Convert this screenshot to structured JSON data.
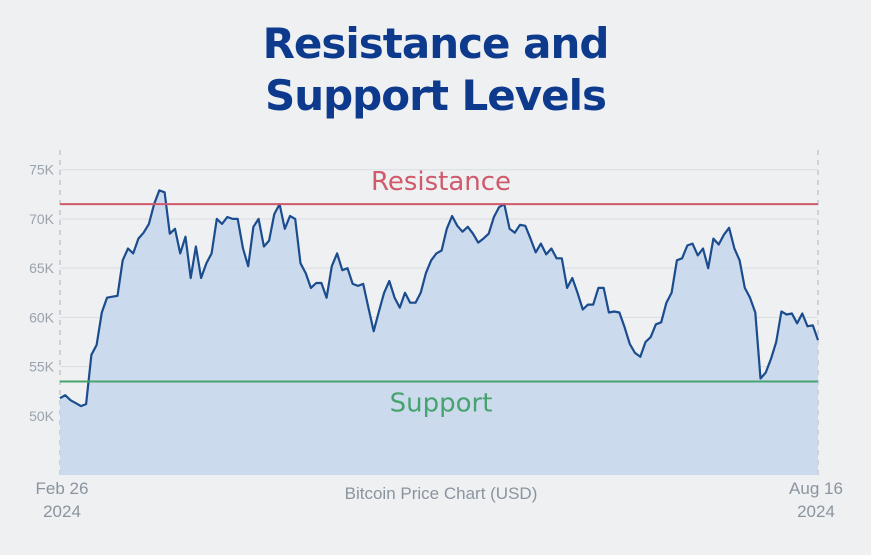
{
  "title": {
    "line1": "Resistance and",
    "line2": "Support Levels"
  },
  "colors": {
    "title": "#0d3a8c",
    "line": "#1a4c8e",
    "area": "#c6d6ec",
    "resistance": "#d0596b",
    "support": "#47a36e",
    "grid": "#d9dde2",
    "tick": "#9aa3ad"
  },
  "chart_data": {
    "type": "area",
    "xlabel": "Bitcoin Price Chart (USD)",
    "ylabel": "",
    "x_start": {
      "line1": "Feb 26",
      "line2": "2024"
    },
    "x_end": {
      "line1": "Aug 16",
      "line2": "2024"
    },
    "ylim": [
      44000,
      77000
    ],
    "yticks": [
      {
        "value": 50000,
        "label": "50K"
      },
      {
        "value": 55000,
        "label": "55K"
      },
      {
        "value": 60000,
        "label": "60K"
      },
      {
        "value": 65000,
        "label": "65K"
      },
      {
        "value": 70000,
        "label": "70K"
      },
      {
        "value": 75000,
        "label": "75K"
      }
    ],
    "grid": true,
    "reference_lines": [
      {
        "label": "Resistance",
        "value": 71500
      },
      {
        "label": "Support",
        "value": 53500
      }
    ],
    "series": [
      {
        "values": [
          51800,
          52100,
          51600,
          51300,
          51000,
          51200,
          56200,
          57200,
          60500,
          62000,
          62100,
          62200,
          65800,
          67000,
          66500,
          68000,
          68600,
          69500,
          71500,
          72900,
          72700,
          68500,
          69000,
          66500,
          68200,
          64000,
          67200,
          64000,
          65500,
          66500,
          70000,
          69500,
          70200,
          70000,
          70000,
          67000,
          65200,
          69200,
          70000,
          67200,
          67800,
          70500,
          71500,
          69000,
          70300,
          70000,
          65500,
          64500,
          63000,
          63500,
          63500,
          62000,
          65200,
          66500,
          64800,
          65000,
          63400,
          63200,
          63400,
          61000,
          58600,
          60600,
          62500,
          63700,
          62000,
          61000,
          62500,
          61500,
          61500,
          62500,
          64500,
          65800,
          66500,
          66800,
          69000,
          70300,
          69300,
          68700,
          69200,
          68500,
          67600,
          68000,
          68500,
          70200,
          71200,
          71500,
          69000,
          68600,
          69400,
          69300,
          68000,
          66600,
          67500,
          66400,
          67000,
          66000,
          66000,
          63000,
          64000,
          62500,
          60800,
          61300,
          61300,
          63000,
          63000,
          60500,
          60600,
          60500,
          59000,
          57300,
          56400,
          56000,
          57500,
          58000,
          59300,
          59500,
          61500,
          62500,
          65800,
          66000,
          67300,
          67500,
          66300,
          67000,
          65000,
          68000,
          67400,
          68400,
          69100,
          67000,
          65800,
          63000,
          62000,
          60500,
          53800,
          54400,
          55800,
          57500,
          60600,
          60300,
          60400,
          59400,
          60400,
          59100,
          59200,
          57700
        ]
      }
    ]
  }
}
